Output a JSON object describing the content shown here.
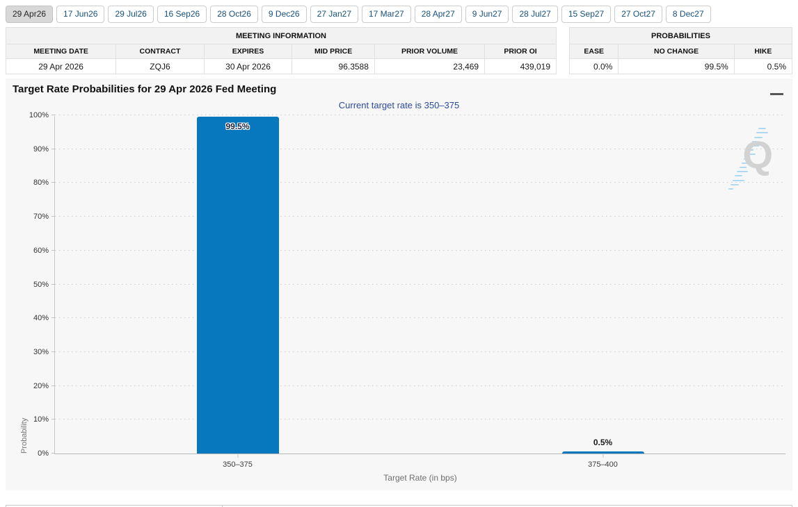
{
  "tab_bar": {
    "tabs": [
      {
        "label": "29 Apr26",
        "selected": true
      },
      {
        "label": "17 Jun26",
        "selected": false
      },
      {
        "label": "29 Jul26",
        "selected": false
      },
      {
        "label": "16 Sep26",
        "selected": false
      },
      {
        "label": "28 Oct26",
        "selected": false
      },
      {
        "label": "9 Dec26",
        "selected": false
      },
      {
        "label": "27 Jan27",
        "selected": false
      },
      {
        "label": "17 Mar27",
        "selected": false
      },
      {
        "label": "28 Apr27",
        "selected": false
      },
      {
        "label": "9 Jun27",
        "selected": false
      },
      {
        "label": "28 Jul27",
        "selected": false
      },
      {
        "label": "15 Sep27",
        "selected": false
      },
      {
        "label": "27 Oct27",
        "selected": false
      },
      {
        "label": "8 Dec27",
        "selected": false
      }
    ]
  },
  "meeting_information": {
    "title": "MEETING INFORMATION",
    "columns": [
      "MEETING DATE",
      "CONTRACT",
      "EXPIRES",
      "MID PRICE",
      "PRIOR VOLUME",
      "PRIOR OI"
    ],
    "aligns": [
      "center",
      "center",
      "center",
      "right",
      "right",
      "right"
    ],
    "col_widths_pct": [
      20,
      16,
      16,
      15,
      20,
      13
    ],
    "values": [
      "29 Apr 2026",
      "ZQJ6",
      "30 Apr 2026",
      "96.3588",
      "23,469",
      "439,019"
    ]
  },
  "probabilities": {
    "title": "PROBABILITIES",
    "columns": [
      "EASE",
      "NO CHANGE",
      "HIKE"
    ],
    "aligns": [
      "right",
      "right",
      "right"
    ],
    "col_widths_pct": [
      22,
      52,
      26
    ],
    "values": [
      "0.0%",
      "99.5%",
      "0.5%"
    ]
  },
  "chart": {
    "title": "Target Rate Probabilities for 29 Apr 2026 Fed Meeting",
    "subtitle": "Current target rate is 350–375",
    "menu_icon": "hamburger-icon",
    "watermark_letter": "Q",
    "bar_color": "#0778bd"
  },
  "chart_data": {
    "type": "bar",
    "title": "Target Rate Probabilities for 29 Apr 2026 Fed Meeting",
    "subtitle": "Current target rate is 350–375",
    "categories": [
      "350–375",
      "375–400"
    ],
    "values": [
      99.5,
      0.5
    ],
    "value_labels": [
      "99.5%",
      "0.5%"
    ],
    "xlabel": "Target Rate (in bps)",
    "ylabel": "Probability",
    "ylim": [
      0,
      100
    ],
    "ytick_step": 10,
    "ytick_suffix": "%",
    "grid": "horizontal-dotted",
    "legend": "none"
  }
}
